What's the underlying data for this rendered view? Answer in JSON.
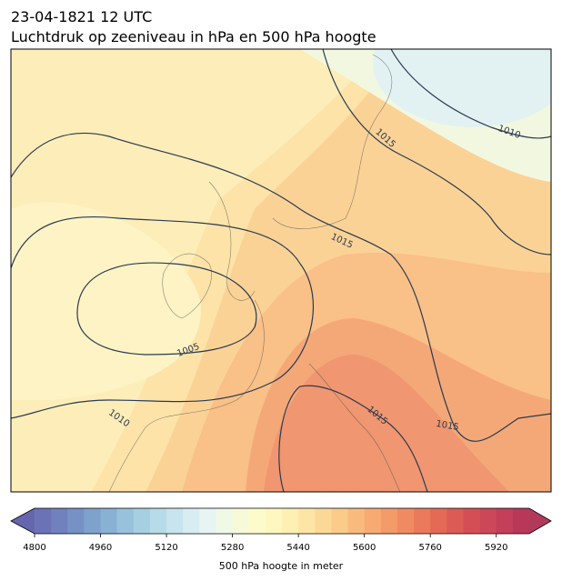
{
  "header": {
    "title": "23-04-1821 12 UTC",
    "subtitle": "Luchtdruk op zeeniveau in hPa en 500 hPa hoogte"
  },
  "map": {
    "contour_labels": [
      1010,
      1015,
      1015,
      1005,
      1010,
      1015,
      1015
    ]
  },
  "colorbar": {
    "label": "500 hPa hoogte in meter",
    "lim": [
      4800,
      6000
    ],
    "ticks": [
      4800,
      4960,
      5120,
      5280,
      5440,
      5600,
      5760,
      5920
    ],
    "colors": [
      "#6b73b6",
      "#7081be",
      "#7691c6",
      "#7fa2cc",
      "#88b1d4",
      "#98c2dc",
      "#a6cfe2",
      "#b7dbe8",
      "#c8e4ee",
      "#d8edf2",
      "#e6f4f2",
      "#f0f8e6",
      "#f7fad8",
      "#fcfbcb",
      "#fef7c0",
      "#feefb3",
      "#fde5a5",
      "#fcd897",
      "#fbcb89",
      "#f9bb7d",
      "#f7ab72",
      "#f49b69",
      "#f08b61",
      "#ea7a5a",
      "#e46a56",
      "#dc5b55",
      "#d44f55",
      "#cc4758",
      "#c33f5a",
      "#b8385a"
    ],
    "under_color": "#6566ae",
    "over_color": "#b13a5c"
  }
}
